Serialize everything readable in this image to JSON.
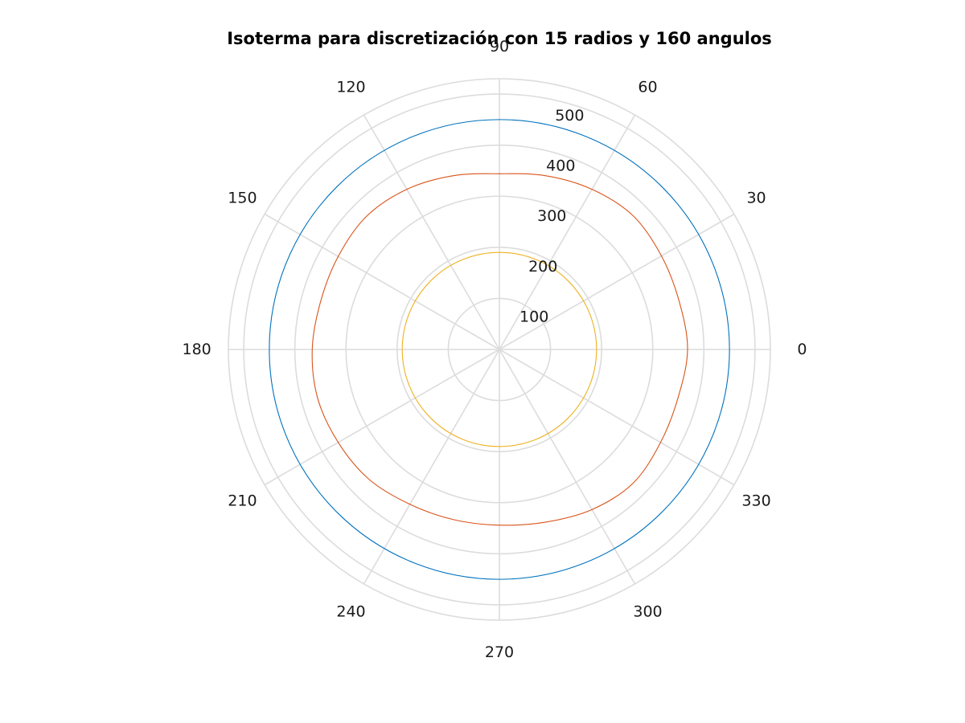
{
  "chart_data": {
    "type": "polar-line",
    "title": "Isoterma para discretización con 15 radios y 160 angulos",
    "theta_ticks": [
      "0",
      "30",
      "60",
      "90",
      "120",
      "150",
      "180",
      "210",
      "240",
      "270",
      "300",
      "330"
    ],
    "theta_tick_values_deg": [
      0,
      30,
      60,
      90,
      120,
      150,
      180,
      210,
      240,
      270,
      300,
      330
    ],
    "r_ticks": [
      "100",
      "200",
      "300",
      "400",
      "500"
    ],
    "r_tick_values": [
      100,
      200,
      300,
      400,
      500
    ],
    "rlim": [
      0,
      530
    ],
    "theta_direction": "counterclockwise",
    "theta_zero": "right",
    "r_tick_label_angle_deg": 80,
    "grid": true,
    "series": [
      {
        "color": "#0072BD",
        "shape": "circle",
        "r": 450
      },
      {
        "color": "#D95319",
        "shape": "wavy-closed-curve",
        "theta_deg": [
          0,
          15,
          30,
          45,
          60,
          75,
          90,
          105,
          120,
          135,
          150,
          165,
          180,
          195,
          210,
          225,
          240,
          255,
          270,
          285,
          300,
          315,
          330,
          345
        ],
        "r": [
          368,
          364,
          366,
          370,
          362,
          352,
          344,
          352,
          362,
          368,
          364,
          362,
          366,
          368,
          364,
          360,
          350,
          345,
          344,
          350,
          362,
          370,
          364,
          362
        ]
      },
      {
        "color": "#EDB120",
        "shape": "circle",
        "r": 190
      }
    ]
  }
}
